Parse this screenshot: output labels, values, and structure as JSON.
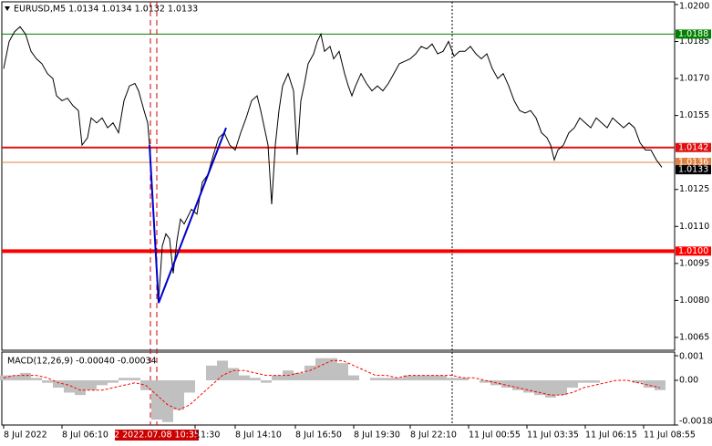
{
  "chart_data": [
    {
      "type": "line",
      "title": "EURUSD,M5  1.0134 1.0134 1.0132 1.0133",
      "color": "#000000",
      "x": [
        0,
        3,
        6,
        9,
        12,
        15,
        18,
        21,
        24,
        27,
        29,
        32,
        35,
        38,
        41,
        43,
        46,
        48,
        51,
        54,
        57,
        60,
        63,
        66,
        69,
        72,
        74,
        77,
        79,
        80,
        81,
        83,
        85,
        87,
        89,
        91,
        93,
        95,
        97,
        99,
        103,
        106,
        109,
        112,
        115,
        118,
        121,
        124,
        127,
        130,
        133,
        136,
        139,
        141,
        143,
        145,
        147,
        149,
        151,
        153,
        156,
        159,
        161,
        163,
        165,
        167,
        170,
        172,
        174,
        176,
        179,
        181,
        184,
        187,
        189,
        191,
        193,
        196,
        199,
        202,
        205,
        208,
        211,
        214,
        217,
        220,
        223,
        226,
        229,
        232,
        235,
        238,
        241,
        244,
        247,
        250,
        253,
        256,
        259,
        262,
        265,
        268,
        271,
        274,
        277,
        280,
        283,
        286,
        289,
        292,
        295,
        298,
        300,
        302,
        304,
        307,
        310,
        313,
        316,
        319,
        322,
        325,
        328,
        331,
        334,
        337,
        340,
        343,
        346,
        349,
        352,
        355,
        358,
        361
      ],
      "values": [
        1.0174,
        1.0185,
        1.0189,
        1.0191,
        1.0188,
        1.0181,
        1.0178,
        1.0176,
        1.0172,
        1.017,
        1.0163,
        1.0161,
        1.0162,
        1.0159,
        1.0157,
        1.0143,
        1.0146,
        1.0154,
        1.0152,
        1.0154,
        1.015,
        1.0152,
        1.0148,
        1.0161,
        1.0167,
        1.0168,
        1.0165,
        1.0157,
        1.0152,
        1.0143,
        1.0128,
        1.0106,
        1.008,
        1.0102,
        1.0107,
        1.0105,
        1.0091,
        1.0104,
        1.0113,
        1.0111,
        1.0117,
        1.0115,
        1.0128,
        1.0131,
        1.0139,
        1.0146,
        1.0148,
        1.0143,
        1.0141,
        1.0148,
        1.0154,
        1.0161,
        1.0163,
        1.0157,
        1.015,
        1.0143,
        1.0119,
        1.0143,
        1.0157,
        1.0167,
        1.0172,
        1.0165,
        1.0139,
        1.0161,
        1.0168,
        1.0176,
        1.018,
        1.0185,
        1.0188,
        1.0181,
        1.0183,
        1.0178,
        1.0181,
        1.0172,
        1.0167,
        1.0163,
        1.0167,
        1.0172,
        1.0168,
        1.0165,
        1.0167,
        1.0165,
        1.0168,
        1.0172,
        1.0176,
        1.0177,
        1.0178,
        1.018,
        1.0183,
        1.0182,
        1.0184,
        1.018,
        1.0181,
        1.0185,
        1.0179,
        1.0181,
        1.0181,
        1.0183,
        1.018,
        1.0178,
        1.018,
        1.0174,
        1.017,
        1.0172,
        1.0167,
        1.0161,
        1.0157,
        1.0156,
        1.0157,
        1.0154,
        1.0148,
        1.0146,
        1.0143,
        1.0137,
        1.0141,
        1.0143,
        1.0148,
        1.015,
        1.0154,
        1.0152,
        1.015,
        1.0154,
        1.0152,
        1.015,
        1.0154,
        1.0152,
        1.015,
        1.0152,
        1.015,
        1.0144,
        1.0141,
        1.0141,
        1.0137,
        1.0134
      ],
      "xlim": [
        -1,
        368
      ],
      "ylim": [
        1.00598,
        1.02011
      ],
      "yticks": [
        {
          "value": 1.02,
          "label": "1.0200"
        },
        1.0185,
        {
          "value": 1.017,
          "label": "1.0170"
        },
        1.0155,
        1.0125,
        {
          "value": 1.011,
          "label": "1.0110"
        },
        1.0095,
        {
          "value": 1.008,
          "label": "1.0080"
        },
        1.0065
      ],
      "levels": [
        {
          "value": 1.0188,
          "color": "#008000",
          "style": "thin"
        },
        {
          "value": 1.0142,
          "color": "#e01010",
          "style": "medium"
        },
        {
          "value": 1.0136,
          "color": "#e08040",
          "style": "thin"
        },
        {
          "value": 1.01,
          "label": "1.0100",
          "color": "#ff0000",
          "style": "thick"
        }
      ],
      "last": 1.0133,
      "drawings": [
        {
          "color": "#0000cc",
          "x": [
            80,
            85,
            122
          ],
          "values": [
            1.0143,
            1.0079,
            1.015
          ]
        }
      ],
      "vlines": [
        {
          "x": 80.5,
          "color": "#cc0000",
          "dash": "dashed"
        },
        {
          "x": 84,
          "color": "#cc0000",
          "dash": "dashed",
          "label": "2 2022.07.08 10:35"
        },
        {
          "x": 246,
          "color": "#000000",
          "dash": "dotted"
        }
      ]
    },
    {
      "type": "bar",
      "title": "MACD(12,26,9) -0.00040 -0.00034",
      "color": "#c0c0c0",
      "signal_color": "#ff0000",
      "x": [
        0,
        6,
        12,
        18,
        24,
        30,
        36,
        42,
        48,
        54,
        60,
        66,
        72,
        78,
        84,
        90,
        96,
        102,
        108,
        114,
        120,
        126,
        132,
        138,
        144,
        150,
        156,
        162,
        168,
        174,
        180,
        186,
        192,
        198,
        204,
        210,
        216,
        222,
        228,
        234,
        240,
        246,
        252,
        258,
        264,
        270,
        276,
        282,
        288,
        294,
        300,
        306,
        312,
        318,
        324,
        330,
        336,
        342,
        348,
        354,
        360
      ],
      "values": [
        0.0002,
        0.0002,
        0.0003,
        0.0001,
        -0.0001,
        -0.0003,
        -0.0005,
        -0.0006,
        -0.0004,
        -0.0002,
        -0.0001,
        0.0001,
        0.0001,
        -0.0004,
        -0.0016,
        -0.0017,
        -0.0012,
        -0.0005,
        0,
        0.0006,
        0.0008,
        0.0005,
        0.0002,
        0.0001,
        -0.0001,
        0.0002,
        0.0004,
        0.0003,
        0.0006,
        0.0009,
        0.0009,
        0.0007,
        0.0002,
        0,
        0.0001,
        0.0001,
        0.0001,
        0.0002,
        0.0002,
        0.0002,
        0.0002,
        0.0001,
        0.0001,
        0,
        -0.0001,
        -0.0002,
        -0.0003,
        -0.0004,
        -0.0005,
        -0.0006,
        -0.0007,
        -0.0006,
        -0.0003,
        -0.0001,
        -0.0001,
        0,
        0,
        0,
        -0.0001,
        -0.0003,
        -0.0004
      ],
      "signal": [
        0.0001,
        0.0002,
        0.0002,
        0.0002,
        0.0001,
        -0.0001,
        -0.0002,
        -0.0004,
        -0.0004,
        -0.0004,
        -0.0003,
        -0.0002,
        -0.0001,
        -0.0002,
        -0.0006,
        -0.001,
        -0.0012,
        -0.001,
        -0.0006,
        -0.0002,
        0.0002,
        0.0004,
        0.0004,
        0.0003,
        0.0002,
        0.0002,
        0.0002,
        0.0003,
        0.0004,
        0.0006,
        0.0008,
        0.0008,
        0.0006,
        0.0004,
        0.0002,
        0.0002,
        0.0001,
        0.0002,
        0.0002,
        0.0002,
        0.0002,
        0.0002,
        0.0001,
        0.0001,
        0,
        -0.0001,
        -0.0002,
        -0.0003,
        -0.0004,
        -0.0005,
        -0.0006,
        -0.0006,
        -0.0005,
        -0.0003,
        -0.0002,
        -0.0001,
        0,
        0,
        -0.0001,
        -0.0002,
        -0.0003
      ],
      "xlim": [
        -1,
        368
      ],
      "ylim": [
        -0.00182,
        0.00115
      ],
      "yticks": [
        0.001,
        {
          "value": 0,
          "label": "0.00"
        },
        -0.00182
      ],
      "xticks": [
        {
          "value": 0,
          "label": "8 Jul 2022"
        },
        {
          "value": 32,
          "label": "8 Jul 06:10"
        },
        {
          "value": 105,
          "label": "11:30"
        },
        {
          "value": 127,
          "label": "8 Jul 14:10"
        },
        {
          "value": 160,
          "label": "8 Jul 16:50"
        },
        {
          "value": 192,
          "label": "8 Jul 19:30"
        },
        {
          "value": 223,
          "label": "8 Jul 22:10"
        },
        {
          "value": 255,
          "label": "11 Jul 00:55"
        },
        {
          "value": 287,
          "label": "11 Jul 03:35"
        },
        {
          "value": 319,
          "label": "11 Jul 06:15"
        },
        {
          "value": 351,
          "label": "11 Jul 08:55"
        }
      ]
    }
  ]
}
